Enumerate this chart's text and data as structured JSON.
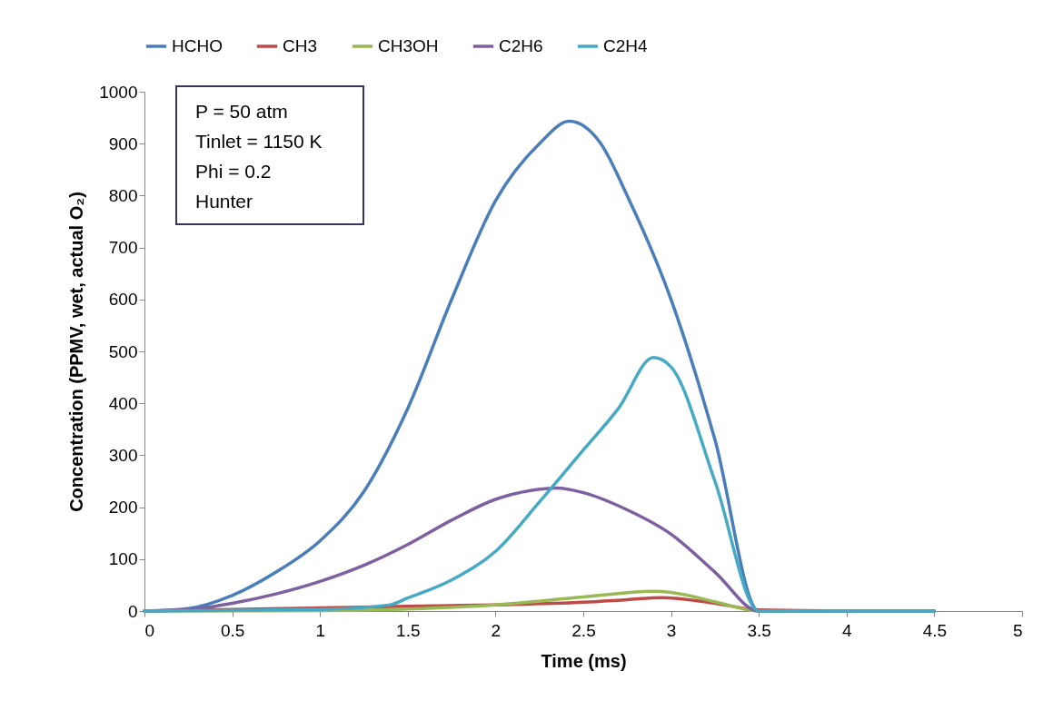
{
  "chart_data": {
    "type": "line",
    "xlabel": "Time (ms)",
    "ylabel": "Concentration (PPMV, wet, actual O₂)",
    "annotations": [
      "P = 50 atm",
      "Tinlet = 1150 K",
      "Phi = 0.2",
      "Hunter"
    ],
    "xlim": [
      0,
      5
    ],
    "xticks": [
      0,
      0.5,
      1,
      1.5,
      2,
      2.5,
      3,
      3.5,
      4,
      4.5,
      5
    ],
    "ylim": [
      0,
      1000
    ],
    "yticks": [
      0,
      100,
      200,
      300,
      400,
      500,
      600,
      700,
      800,
      900,
      1000
    ],
    "grid": false,
    "legend": "top",
    "marker": "none",
    "line_style": "solid",
    "series": [
      {
        "name": "HCHO",
        "color": "#4a7ebb",
        "x": [
          0,
          0.25,
          0.5,
          0.75,
          1,
          1.25,
          1.5,
          1.75,
          2,
          2.25,
          2.42,
          2.6,
          2.75,
          3,
          3.25,
          3.5,
          4,
          4.5
        ],
        "values": [
          0,
          5,
          30,
          75,
          135,
          230,
          390,
          600,
          790,
          900,
          943,
          900,
          800,
          600,
          330,
          0,
          0,
          0
        ]
      },
      {
        "name": "CH3",
        "color": "#be4b48",
        "x": [
          0,
          0.5,
          1,
          1.5,
          2,
          2.5,
          2.75,
          2.95,
          3.25,
          3.5,
          4,
          4.5
        ],
        "values": [
          0,
          3,
          6,
          9,
          12,
          17,
          22,
          26,
          15,
          2,
          0,
          0
        ]
      },
      {
        "name": "CH3OH",
        "color": "#98b954",
        "x": [
          0,
          1,
          1.5,
          2,
          2.5,
          2.9,
          3,
          3.25,
          3.5,
          4,
          4.5
        ],
        "values": [
          0,
          1,
          4,
          12,
          27,
          38,
          36,
          18,
          0,
          0,
          0
        ]
      },
      {
        "name": "C2H6",
        "color": "#7d60a0",
        "x": [
          0,
          0.25,
          0.5,
          0.75,
          1,
          1.25,
          1.5,
          1.75,
          2,
          2.2,
          2.35,
          2.5,
          2.75,
          3,
          3.25,
          3.5,
          4,
          4.5
        ],
        "values": [
          0,
          3,
          15,
          33,
          57,
          88,
          128,
          175,
          215,
          232,
          237,
          228,
          195,
          148,
          75,
          0,
          0,
          0
        ]
      },
      {
        "name": "C2H4",
        "color": "#46aac5",
        "x": [
          0,
          1,
          1.4,
          1.5,
          1.75,
          2,
          2.25,
          2.5,
          2.7,
          2.9,
          3,
          3.25,
          3.5,
          4,
          4.5
        ],
        "values": [
          0,
          3,
          12,
          25,
          60,
          115,
          210,
          310,
          390,
          488,
          470,
          250,
          0,
          0,
          0
        ]
      }
    ]
  }
}
